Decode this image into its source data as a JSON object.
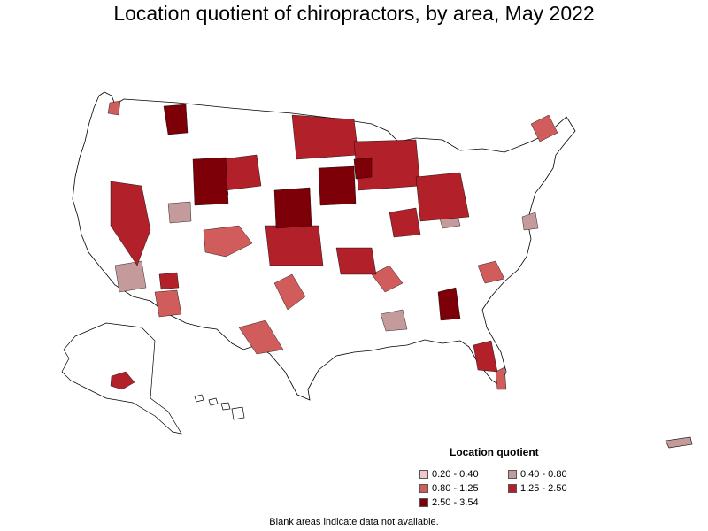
{
  "title": "Location quotient of chiropractors, by area, May 2022",
  "legend": {
    "title": "Location quotient",
    "items": [
      {
        "label": "0.20 - 0.40",
        "color": "#f4c6c9"
      },
      {
        "label": "0.40 - 0.80",
        "color": "#c59a9a"
      },
      {
        "label": "0.80 - 1.25",
        "color": "#d05c5c"
      },
      {
        "label": "1.25 - 2.50",
        "color": "#b2202a"
      },
      {
        "label": "2.50 - 3.54",
        "color": "#7d0008"
      }
    ]
  },
  "note": "Blank areas indicate data not available.",
  "colors": {
    "blank": "#ffffff",
    "border": "#000000"
  }
}
